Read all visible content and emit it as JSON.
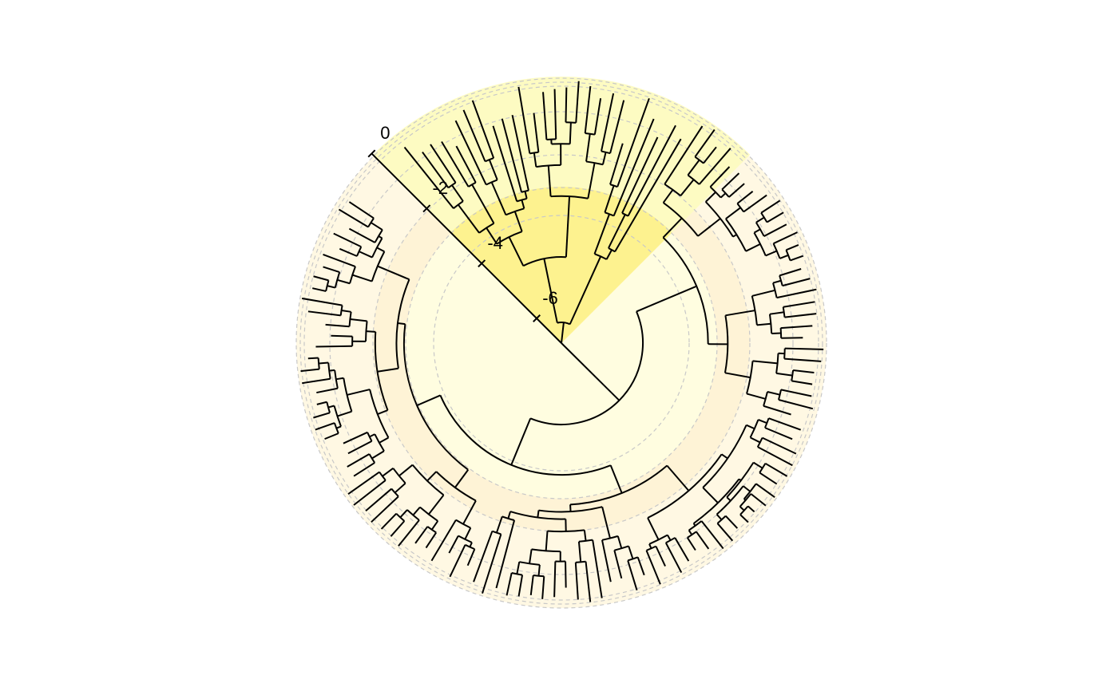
{
  "axis": {
    "ticks": [
      0,
      -2,
      -4,
      -6
    ]
  }
}
